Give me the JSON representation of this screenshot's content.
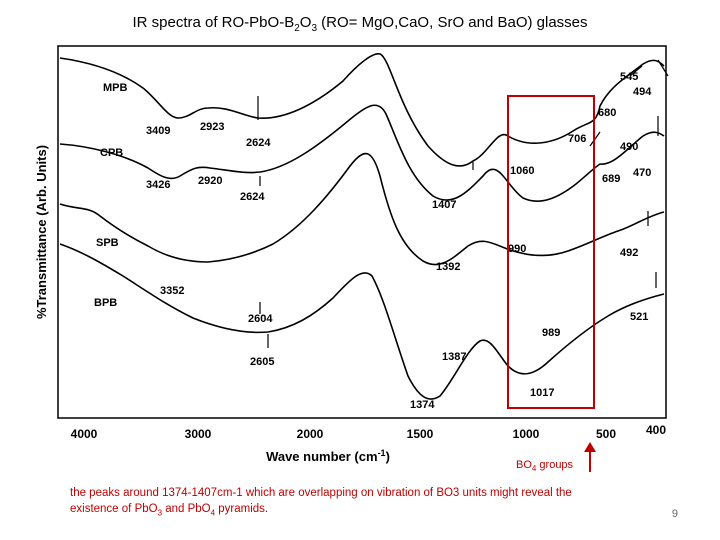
{
  "slide": {
    "title_plain": "IR spectra of RO-PbO-B",
    "title_sub2": "2",
    "title_o": "O",
    "title_sub3": "3",
    "title_rest": " (RO= MgO,CaO, SrO and BaO) glasses",
    "caption_line1": "the peaks around 1374-1407cm-1 which are overlapping on vibration of BO3 units might reveal the",
    "caption_line2_a": "existence of PbO",
    "caption_sub3": "3",
    "caption_line2_b": " and PbO",
    "caption_sub4": "4",
    "caption_line2_c": " pyramids.",
    "page_number": "9"
  },
  "figure": {
    "ylabel": "%Transmittance (Arb. Units)",
    "xlabel": "Wave number (cm",
    "xlabel_sup": "-1",
    "xlabel_end": ")",
    "x_ticks": [
      "4000",
      "3000",
      "2000",
      "1500",
      "1000",
      "500",
      "400"
    ],
    "series_labels": [
      "MPB",
      "CPB",
      "SPB",
      "BPB"
    ],
    "peak_labels": {
      "p3409": "3409",
      "p2923": "2923",
      "p2624a": "2624",
      "p3426": "3426",
      "p2920": "2920",
      "p2624b": "2624",
      "p3352": "3352",
      "p2604": "2604",
      "p2605": "2605",
      "p1407": "1407",
      "p1392": "1392",
      "p1387": "1387",
      "p1374": "1374",
      "p1060": "1060",
      "p990": "990",
      "p989": "989",
      "p1017": "1017",
      "p706": "706",
      "p680": "680",
      "p689": "689",
      "p545": "545",
      "p494": "494",
      "p490": "490",
      "p470": "470",
      "p492": "492",
      "p521": "521"
    },
    "highlight_label": "BO",
    "highlight_sub": "4",
    "highlight_rest": " groups",
    "highlight_color": "#c00000"
  }
}
